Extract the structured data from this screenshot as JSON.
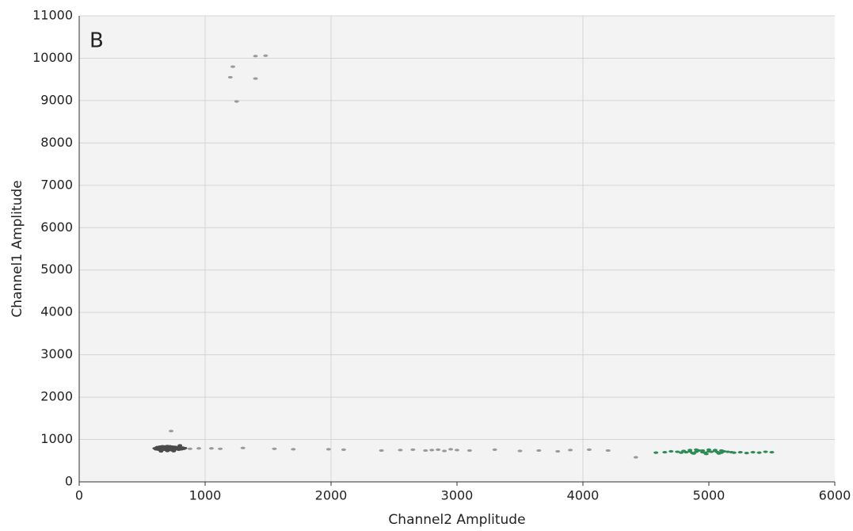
{
  "chart_data": {
    "type": "scatter",
    "annotation": "B",
    "x_label": "Channel2 Amplitude",
    "y_label": "Channel1 Amplitude",
    "xlim": [
      0,
      6000
    ],
    "ylim": [
      0,
      11000
    ],
    "xticks": [
      0,
      1000,
      2000,
      3000,
      4000,
      5000,
      6000
    ],
    "yticks": [
      0,
      1000,
      2000,
      3000,
      4000,
      5000,
      6000,
      7000,
      8000,
      9000,
      10000,
      11000
    ],
    "xgrid": [
      1000,
      2000,
      4000
    ],
    "grid": true,
    "series": [
      {
        "color": "#4a4a4a",
        "x": [
          600,
          620,
          640,
          660,
          680,
          700,
          720,
          740,
          760,
          780,
          800,
          820,
          840,
          610,
          630,
          650,
          670,
          690,
          710,
          730,
          750,
          770,
          790,
          810,
          830,
          620,
          640,
          660,
          680,
          700,
          720,
          740,
          760,
          780,
          800,
          820,
          650,
          700,
          750,
          800
        ],
        "values": [
          790,
          800,
          780,
          810,
          790,
          800,
          785,
          795,
          790,
          805,
          790,
          780,
          795,
          770,
          760,
          750,
          760,
          755,
          765,
          750,
          760,
          770,
          760,
          770,
          780,
          820,
          830,
          840,
          835,
          845,
          840,
          830,
          825,
          820,
          815,
          810,
          720,
          730,
          725,
          860
        ]
      },
      {
        "color": "#2e8b57",
        "x": [
          4580,
          4650,
          4700,
          4750,
          4780,
          4800,
          4820,
          4850,
          4870,
          4900,
          4920,
          4950,
          4970,
          5000,
          5020,
          5050,
          5070,
          5100,
          5120,
          5150,
          5180,
          5200,
          5250,
          5300,
          5350,
          5400,
          5450,
          5500,
          4850,
          4900,
          4950,
          5000,
          5050,
          5100,
          4880,
          4980,
          5080
        ],
        "values": [
          690,
          700,
          720,
          710,
          690,
          730,
          700,
          720,
          680,
          710,
          740,
          700,
          690,
          720,
          710,
          730,
          700,
          690,
          720,
          710,
          700,
          690,
          700,
          680,
          700,
          690,
          710,
          700,
          750,
          760,
          740,
          760,
          750,
          740,
          670,
          660,
          670
        ]
      },
      {
        "color": "#9a9a9a",
        "x": [
          880,
          950,
          1050,
          1120,
          1300,
          1550,
          1700,
          1980,
          2100,
          2400,
          2550,
          2650,
          2750,
          2800,
          2850,
          2900,
          2950,
          3000,
          3100,
          3300,
          3500,
          3650,
          3800,
          3900,
          4050,
          4200,
          4420,
          1200,
          1220,
          1250,
          1400,
          1400,
          1480,
          730
        ],
        "values": [
          780,
          790,
          790,
          780,
          800,
          780,
          770,
          770,
          760,
          740,
          750,
          760,
          740,
          750,
          760,
          730,
          770,
          750,
          740,
          760,
          730,
          740,
          720,
          750,
          760,
          740,
          580,
          9550,
          9800,
          8980,
          9520,
          10050,
          10060,
          1200
        ]
      }
    ]
  }
}
